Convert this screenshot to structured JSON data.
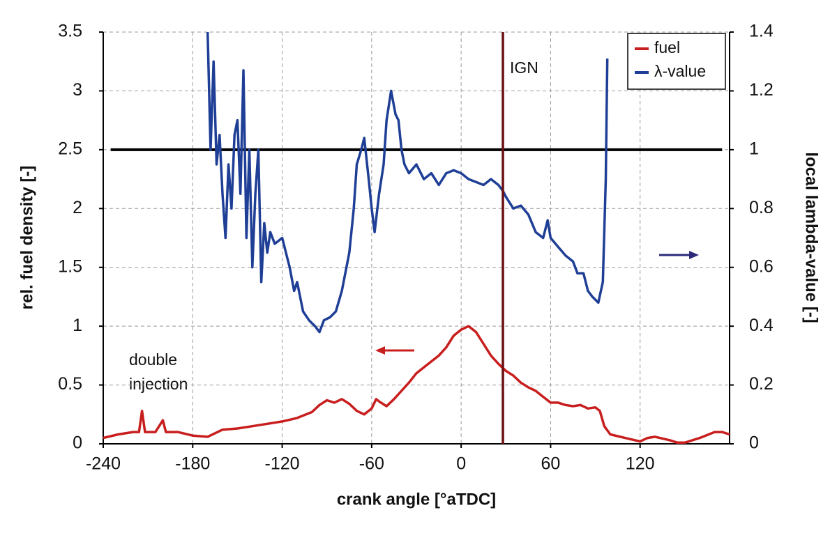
{
  "chart_data": {
    "type": "line",
    "xlabel": "crank angle [°aTDC]",
    "ylabel": "rel. fuel density [-]",
    "y2label": "local lambda-value [-]",
    "xlim": [
      -240,
      180
    ],
    "xticks": [
      -240,
      -180,
      -120,
      -60,
      0,
      60,
      120
    ],
    "ylim": [
      0,
      3.5
    ],
    "yticks": [
      0,
      0.5,
      1,
      1.5,
      2,
      2.5,
      3,
      3.5
    ],
    "y2lim": [
      0,
      1.4
    ],
    "y2ticks": [
      0,
      0.2,
      0.4,
      0.6,
      0.8,
      1,
      1.2,
      1.4
    ],
    "grid": true,
    "legend": "upper right",
    "series": [
      {
        "name": "fuel",
        "color": "#c81e1e",
        "axis": "y",
        "x": [
          -240,
          -230,
          -220,
          -216,
          -214,
          -212,
          -205,
          -200,
          -198,
          -190,
          -180,
          -170,
          -160,
          -150,
          -140,
          -130,
          -120,
          -110,
          -100,
          -95,
          -90,
          -85,
          -80,
          -75,
          -70,
          -65,
          -60,
          -57,
          -55,
          -50,
          -45,
          -40,
          -35,
          -30,
          -25,
          -20,
          -15,
          -10,
          -5,
          0,
          5,
          10,
          15,
          20,
          25,
          30,
          35,
          40,
          45,
          50,
          55,
          60,
          65,
          70,
          75,
          80,
          85,
          90,
          93,
          96,
          100,
          110,
          120,
          125,
          130,
          140,
          145,
          150,
          160,
          170,
          175,
          180
        ],
        "values": [
          0.05,
          0.08,
          0.1,
          0.1,
          0.28,
          0.1,
          0.1,
          0.2,
          0.1,
          0.1,
          0.07,
          0.06,
          0.12,
          0.13,
          0.15,
          0.17,
          0.19,
          0.22,
          0.27,
          0.33,
          0.37,
          0.35,
          0.38,
          0.34,
          0.28,
          0.25,
          0.3,
          0.38,
          0.36,
          0.32,
          0.38,
          0.45,
          0.52,
          0.6,
          0.65,
          0.7,
          0.75,
          0.82,
          0.92,
          0.97,
          1.0,
          0.95,
          0.85,
          0.75,
          0.68,
          0.62,
          0.58,
          0.52,
          0.48,
          0.45,
          0.4,
          0.35,
          0.35,
          0.33,
          0.32,
          0.33,
          0.3,
          0.31,
          0.28,
          0.15,
          0.08,
          0.05,
          0.02,
          0.05,
          0.06,
          0.03,
          0.01,
          0.01,
          0.05,
          0.1,
          0.1,
          0.08
        ]
      },
      {
        "name": "λ-value",
        "color": "#1f3f96",
        "axis": "y2",
        "x": [
          -170,
          -168,
          -166,
          -164,
          -162,
          -160,
          -158,
          -156,
          -154,
          -152,
          -150,
          -148,
          -146,
          -144,
          -142,
          -140,
          -138,
          -136,
          -134,
          -132,
          -130,
          -128,
          -125,
          -120,
          -115,
          -112,
          -110,
          -106,
          -102,
          -98,
          -95,
          -92,
          -88,
          -84,
          -80,
          -75,
          -72,
          -70,
          -67,
          -65,
          -62,
          -60,
          -58,
          -55,
          -52,
          -50,
          -47,
          -44,
          -42,
          -40,
          -38,
          -35,
          -30,
          -25,
          -20,
          -15,
          -10,
          -5,
          0,
          5,
          10,
          15,
          20,
          25,
          28,
          30,
          35,
          40,
          45,
          50,
          55,
          58,
          60,
          65,
          70,
          75,
          78,
          82,
          85,
          88,
          92,
          95,
          97,
          98
        ],
        "values": [
          1.4,
          1.0,
          1.3,
          0.95,
          1.05,
          0.85,
          0.7,
          0.95,
          0.8,
          1.05,
          1.1,
          0.85,
          1.27,
          0.7,
          1.0,
          0.6,
          0.85,
          1.0,
          0.55,
          0.75,
          0.65,
          0.72,
          0.68,
          0.7,
          0.6,
          0.52,
          0.55,
          0.45,
          0.42,
          0.4,
          0.38,
          0.42,
          0.43,
          0.45,
          0.52,
          0.65,
          0.8,
          0.95,
          1.0,
          1.04,
          0.9,
          0.8,
          0.72,
          0.85,
          0.95,
          1.1,
          1.2,
          1.12,
          1.1,
          1.0,
          0.95,
          0.92,
          0.95,
          0.9,
          0.92,
          0.88,
          0.92,
          0.93,
          0.92,
          0.9,
          0.89,
          0.88,
          0.9,
          0.88,
          0.86,
          0.84,
          0.8,
          0.81,
          0.78,
          0.72,
          0.7,
          0.76,
          0.7,
          0.67,
          0.64,
          0.62,
          0.58,
          0.58,
          0.52,
          0.5,
          0.48,
          0.55,
          0.9,
          1.31
        ]
      }
    ],
    "lambda_reference": {
      "value": 1,
      "x": [
        -235,
        175
      ]
    },
    "ignition": {
      "label": "IGN",
      "x": 28
    },
    "annotations": [
      "double",
      "injection"
    ]
  }
}
